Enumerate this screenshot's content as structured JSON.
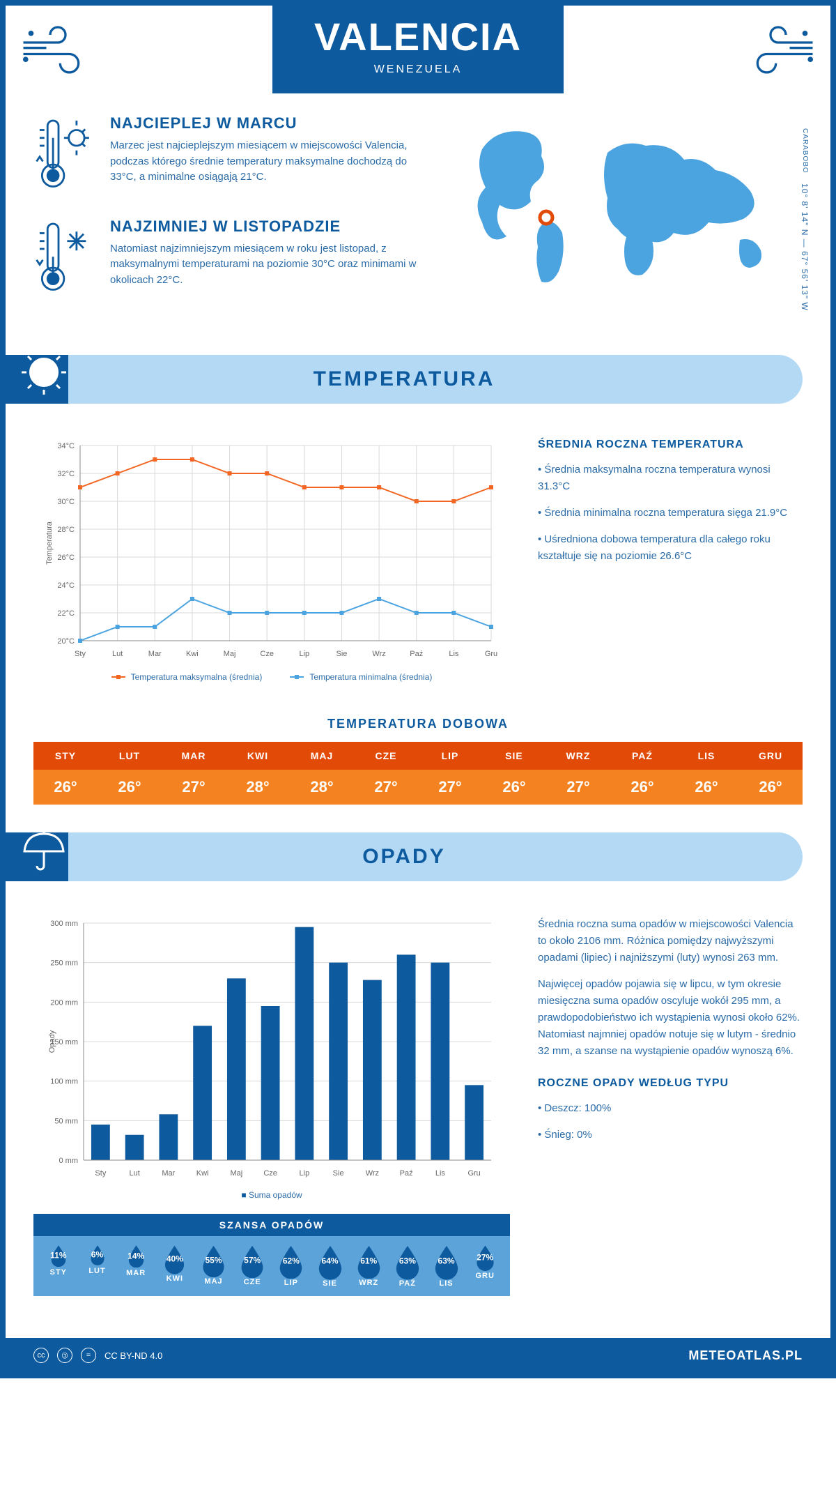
{
  "header": {
    "city": "VALENCIA",
    "country": "WENEZUELA"
  },
  "coords": {
    "region": "CARABOBO",
    "lat": "10° 8' 14\" N",
    "sep": "—",
    "lon": "67° 56' 13\" W"
  },
  "facts": {
    "warm": {
      "title": "NAJCIEPLEJ W MARCU",
      "text": "Marzec jest najcieplejszym miesiącem w miejscowości Valencia, podczas którego średnie temperatury maksymalne dochodzą do 33°C, a minimalne osiągają 21°C."
    },
    "cold": {
      "title": "NAJZIMNIEJ W LISTOPADZIE",
      "text": "Natomiast najzimniejszym miesiącem w roku jest listopad, z maksymalnymi temperaturami na poziomie 30°C oraz minimami w okolicach 22°C."
    }
  },
  "sections": {
    "temperature": "TEMPERATURA",
    "rain": "OPADY"
  },
  "temp_chart": {
    "type": "line",
    "months": [
      "Sty",
      "Lut",
      "Mar",
      "Kwi",
      "Maj",
      "Cze",
      "Lip",
      "Sie",
      "Wrz",
      "Paź",
      "Lis",
      "Gru"
    ],
    "max_series": [
      31,
      32,
      33,
      33,
      32,
      32,
      31,
      31,
      31,
      30,
      30,
      31
    ],
    "min_series": [
      20,
      21,
      21,
      23,
      22,
      22,
      22,
      22,
      23,
      22,
      22,
      21
    ],
    "ylim": [
      20,
      34
    ],
    "ytick_step": 2,
    "y_suffix": "°C",
    "y_label": "Temperatura",
    "max_color": "#f26522",
    "min_color": "#4ba3e0",
    "grid_color": "#d8d8d8",
    "axis_color": "#888888",
    "legend_max": "Temperatura maksymalna (średnia)",
    "legend_min": "Temperatura minimalna (średnia)"
  },
  "temp_info": {
    "heading": "ŚREDNIA ROCZNA TEMPERATURA",
    "b1": "• Średnia maksymalna roczna temperatura wynosi 31.3°C",
    "b2": "• Średnia minimalna roczna temperatura sięga 21.9°C",
    "b3": "• Uśredniona dobowa temperatura dla całego roku kształtuje się na poziomie 26.6°C"
  },
  "daily_temp": {
    "heading": "TEMPERATURA DOBOWA",
    "months": [
      "STY",
      "LUT",
      "MAR",
      "KWI",
      "MAJ",
      "CZE",
      "LIP",
      "SIE",
      "WRZ",
      "PAŹ",
      "LIS",
      "GRU"
    ],
    "values": [
      "26°",
      "26°",
      "27°",
      "28°",
      "28°",
      "27°",
      "27°",
      "26°",
      "27°",
      "26°",
      "26°",
      "26°"
    ],
    "head_bg": "#e24a08",
    "body_bg": "#f58220"
  },
  "rain_chart": {
    "type": "bar",
    "months": [
      "Sty",
      "Lut",
      "Mar",
      "Kwi",
      "Maj",
      "Cze",
      "Lip",
      "Sie",
      "Wrz",
      "Paź",
      "Lis",
      "Gru"
    ],
    "values": [
      45,
      32,
      58,
      170,
      230,
      195,
      295,
      250,
      228,
      260,
      250,
      95
    ],
    "ylim": [
      0,
      300
    ],
    "ytick_step": 50,
    "y_suffix": " mm",
    "y_label": "Opady",
    "bar_color": "#0d5a9e",
    "grid_color": "#d8d8d8",
    "axis_color": "#888888",
    "legend": "Suma opadów"
  },
  "rain_info": {
    "p1": "Średnia roczna suma opadów w miejscowości Valencia to około 2106 mm. Różnica pomiędzy najwyższymi opadami (lipiec) i najniższymi (luty) wynosi 263 mm.",
    "p2": "Najwięcej opadów pojawia się w lipcu, w tym okresie miesięczna suma opadów oscyluje wokół 295 mm, a prawdopodobieństwo ich wystąpienia wynosi około 62%. Natomiast najmniej opadów notuje się w lutym - średnio 32 mm, a szanse na wystąpienie opadów wynoszą 6%.",
    "type_heading": "ROCZNE OPADY WEDŁUG TYPU",
    "type_b1": "• Deszcz: 100%",
    "type_b2": "• Śnieg: 0%"
  },
  "chance": {
    "title": "SZANSA OPADÓW",
    "months": [
      "STY",
      "LUT",
      "MAR",
      "KWI",
      "MAJ",
      "CZE",
      "LIP",
      "SIE",
      "WRZ",
      "PAŹ",
      "LIS",
      "GRU"
    ],
    "values": [
      "11%",
      "6%",
      "14%",
      "40%",
      "55%",
      "57%",
      "62%",
      "64%",
      "61%",
      "63%",
      "63%",
      "27%"
    ],
    "raw": [
      11,
      6,
      14,
      40,
      55,
      57,
      62,
      64,
      61,
      63,
      63,
      27
    ],
    "bg": "#5ba3d9",
    "drop_color": "#0d5a9e"
  },
  "footer": {
    "license": "CC BY-ND 4.0",
    "site": "METEOATLAS.PL"
  },
  "colors": {
    "primary": "#0d5a9e",
    "light_blue": "#b3d9f5",
    "text": "#2b6ca8"
  }
}
